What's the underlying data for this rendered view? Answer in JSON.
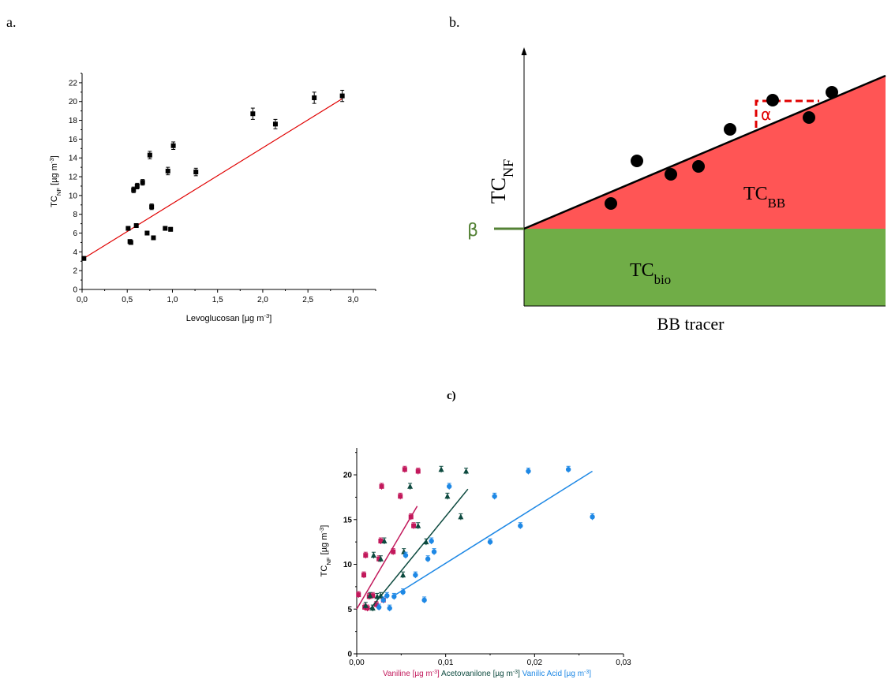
{
  "panels": {
    "a": "a.",
    "b": "b.",
    "c": "c)"
  },
  "chart_data": [
    {
      "type": "scatter",
      "panel": "a.",
      "xlabel": "Levoglucosan [µg m⁻³]",
      "ylabel": "TCNF [µg m⁻³]",
      "xlim": [
        0,
        3.25
      ],
      "ylim": [
        0,
        23
      ],
      "xticks": [
        "0,0",
        "0,5",
        "1,0",
        "1,5",
        "2,0",
        "2,5",
        "3,0"
      ],
      "yticks": [
        "0",
        "2",
        "4",
        "6",
        "8",
        "10",
        "12",
        "14",
        "16",
        "18",
        "20",
        "22"
      ],
      "marker_color": "#000000",
      "fit_color": "#e00000",
      "points": [
        {
          "x": 0.02,
          "y": 3.3,
          "e": 0.2
        },
        {
          "x": 0.51,
          "y": 6.5,
          "e": 0.2
        },
        {
          "x": 0.53,
          "y": 5.1,
          "e": 0.2
        },
        {
          "x": 0.54,
          "y": 5.0,
          "e": 0.2
        },
        {
          "x": 0.57,
          "y": 10.6,
          "e": 0.3
        },
        {
          "x": 0.6,
          "y": 6.8,
          "e": 0.2
        },
        {
          "x": 0.61,
          "y": 11.0,
          "e": 0.3
        },
        {
          "x": 0.67,
          "y": 11.4,
          "e": 0.3
        },
        {
          "x": 0.72,
          "y": 6.0,
          "e": 0.2
        },
        {
          "x": 0.75,
          "y": 14.3,
          "e": 0.4
        },
        {
          "x": 0.77,
          "y": 8.8,
          "e": 0.3
        },
        {
          "x": 0.79,
          "y": 5.5,
          "e": 0.2
        },
        {
          "x": 0.92,
          "y": 6.5,
          "e": 0.2
        },
        {
          "x": 0.95,
          "y": 12.6,
          "e": 0.4
        },
        {
          "x": 0.98,
          "y": 6.4,
          "e": 0.2
        },
        {
          "x": 1.01,
          "y": 15.3,
          "e": 0.4
        },
        {
          "x": 1.26,
          "y": 12.5,
          "e": 0.4
        },
        {
          "x": 1.89,
          "y": 18.7,
          "e": 0.6
        },
        {
          "x": 2.14,
          "y": 17.6,
          "e": 0.5
        },
        {
          "x": 2.57,
          "y": 20.4,
          "e": 0.6
        },
        {
          "x": 2.88,
          "y": 20.6,
          "e": 0.6
        }
      ],
      "fit": {
        "x": [
          0.0,
          2.88
        ],
        "y": [
          3.2,
          20.3
        ]
      }
    },
    {
      "type": "diagram",
      "panel": "b.",
      "ylabel_main": "TC",
      "ylabel_sub": "NF",
      "xlabel": "BB tracer",
      "alpha_label": "α",
      "beta_label": "β",
      "region_bb_main": "TC",
      "region_bb_sub": "BB",
      "region_bio_main": "TC",
      "region_bio_sub": "bio",
      "bb_color": "#ff5555",
      "bio_color": "#70ad47",
      "alpha_color": "#e00000",
      "beta_color": "#548235"
    },
    {
      "type": "scatter",
      "panel": "c)",
      "ylabel": "TCNF [µg m⁻³]",
      "xlim": [
        0,
        0.03
      ],
      "ylim": [
        0,
        23
      ],
      "xticks": [
        "0,00",
        "0,01",
        "0,02",
        "0,03"
      ],
      "yticks": [
        "0",
        "5",
        "10",
        "15",
        "20"
      ],
      "xlabels": [
        {
          "text": "Vaniline [µg m⁻³]",
          "color": "#c2185b"
        },
        {
          "text": "Acetovanilone [µg m⁻³]",
          "color": "#0d4a3f"
        },
        {
          "text": "Vanilic Acid [µg m⁻³]",
          "color": "#1e88e5"
        }
      ],
      "series": [
        {
          "marker": "square",
          "color": "#c2185b",
          "points": [
            {
              "x": 0.0002,
              "y": 6.6
            },
            {
              "x": 0.0008,
              "y": 8.8
            },
            {
              "x": 0.001,
              "y": 11.0
            },
            {
              "x": 0.0009,
              "y": 5.2
            },
            {
              "x": 0.0014,
              "y": 6.4
            },
            {
              "x": 0.0018,
              "y": 6.5
            },
            {
              "x": 0.0022,
              "y": 5.5
            },
            {
              "x": 0.0025,
              "y": 10.6
            },
            {
              "x": 0.0027,
              "y": 12.6
            },
            {
              "x": 0.0028,
              "y": 18.7
            },
            {
              "x": 0.003,
              "y": 6.0
            },
            {
              "x": 0.0041,
              "y": 11.4
            },
            {
              "x": 0.0049,
              "y": 17.6
            },
            {
              "x": 0.0054,
              "y": 20.6
            },
            {
              "x": 0.0061,
              "y": 15.3
            },
            {
              "x": 0.0064,
              "y": 14.3
            },
            {
              "x": 0.0069,
              "y": 20.4
            },
            {
              "x": 0.0012,
              "y": 5.1
            }
          ],
          "fit": {
            "x": [
              0.0,
              0.0068
            ],
            "y": [
              5.0,
              16.5
            ]
          }
        },
        {
          "marker": "triangle",
          "color": "#0d4a3f",
          "points": [
            {
              "x": 0.001,
              "y": 5.4
            },
            {
              "x": 0.0015,
              "y": 6.5
            },
            {
              "x": 0.0018,
              "y": 5.1
            },
            {
              "x": 0.0019,
              "y": 11.0
            },
            {
              "x": 0.0023,
              "y": 6.4
            },
            {
              "x": 0.0027,
              "y": 6.5
            },
            {
              "x": 0.0027,
              "y": 10.6
            },
            {
              "x": 0.0031,
              "y": 12.6
            },
            {
              "x": 0.0052,
              "y": 8.8
            },
            {
              "x": 0.0053,
              "y": 11.4
            },
            {
              "x": 0.006,
              "y": 18.7
            },
            {
              "x": 0.0069,
              "y": 14.3
            },
            {
              "x": 0.0078,
              "y": 12.5
            },
            {
              "x": 0.0095,
              "y": 20.6
            },
            {
              "x": 0.0102,
              "y": 17.6
            },
            {
              "x": 0.0117,
              "y": 15.3
            },
            {
              "x": 0.0123,
              "y": 20.4
            }
          ],
          "fit": {
            "x": [
              0.0015,
              0.0125
            ],
            "y": [
              5.0,
              18.4
            ]
          }
        },
        {
          "marker": "circle",
          "color": "#1e88e5",
          "points": [
            {
              "x": 0.0025,
              "y": 5.2
            },
            {
              "x": 0.003,
              "y": 6.0
            },
            {
              "x": 0.0034,
              "y": 6.5
            },
            {
              "x": 0.0037,
              "y": 5.1
            },
            {
              "x": 0.0042,
              "y": 6.4
            },
            {
              "x": 0.0052,
              "y": 6.9
            },
            {
              "x": 0.0055,
              "y": 11.0
            },
            {
              "x": 0.0066,
              "y": 8.8
            },
            {
              "x": 0.0076,
              "y": 6.0
            },
            {
              "x": 0.008,
              "y": 10.6
            },
            {
              "x": 0.0084,
              "y": 12.6
            },
            {
              "x": 0.0087,
              "y": 11.4
            },
            {
              "x": 0.0104,
              "y": 18.7
            },
            {
              "x": 0.015,
              "y": 12.5
            },
            {
              "x": 0.0155,
              "y": 17.6
            },
            {
              "x": 0.0184,
              "y": 14.3
            },
            {
              "x": 0.0193,
              "y": 20.4
            },
            {
              "x": 0.0238,
              "y": 20.6
            },
            {
              "x": 0.0265,
              "y": 15.3
            }
          ],
          "fit": {
            "x": [
              0.0042,
              0.0265
            ],
            "y": [
              6.5,
              20.4
            ]
          }
        }
      ]
    }
  ]
}
